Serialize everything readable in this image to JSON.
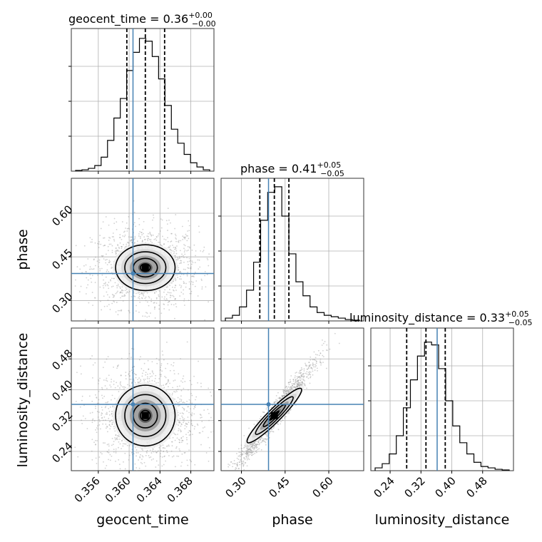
{
  "chart_data": {
    "type": "corner",
    "parameters": [
      "geocent_time",
      "phase",
      "luminosity_distance"
    ],
    "truth": {
      "geocent_time": 0.3605,
      "phase": 0.393,
      "luminosity_distance": 0.362
    },
    "titles": {
      "geocent_time": {
        "base": "geocent_time = 0.36",
        "plus": "+0.00",
        "minus": "−0.00"
      },
      "phase": {
        "base": "phase = 0.41",
        "plus": "+0.05",
        "minus": "−0.05"
      },
      "luminosity_distance": {
        "base": "luminosity_distance = 0.33",
        "plus": "+0.05",
        "minus": "−0.05"
      }
    },
    "axis_labels": {
      "geocent_time": "geocent_time",
      "phase": "phase",
      "luminosity_distance": "luminosity_distance"
    },
    "ticks": {
      "geocent_time": [
        "0.356",
        "0.360",
        "0.364",
        "0.368"
      ],
      "phase": [
        "0.30",
        "0.45",
        "0.60"
      ],
      "luminosity_distance": [
        "0.24",
        "0.32",
        "0.40",
        "0.48"
      ]
    },
    "ranges": {
      "geocent_time": [
        0.3525,
        0.371
      ],
      "phase": [
        0.23,
        0.72
      ],
      "luminosity_distance": [
        0.19,
        0.56
      ]
    },
    "quantile_lines": {
      "geocent_time": [
        0.3597,
        0.3621,
        0.3646
      ],
      "phase": [
        0.363,
        0.413,
        0.463
      ],
      "luminosity_distance": [
        0.283,
        0.333,
        0.383
      ]
    },
    "histograms": {
      "geocent_time": [
        0.005,
        0.01,
        0.02,
        0.04,
        0.1,
        0.22,
        0.38,
        0.52,
        0.72,
        0.85,
        0.95,
        0.93,
        0.82,
        0.66,
        0.47,
        0.3,
        0.2,
        0.12,
        0.06,
        0.03,
        0.01
      ],
      "phase": [
        0.02,
        0.04,
        0.1,
        0.22,
        0.42,
        0.72,
        0.92,
        0.96,
        0.75,
        0.48,
        0.28,
        0.18,
        0.1,
        0.06,
        0.04,
        0.03,
        0.02,
        0.01,
        0.005
      ],
      "luminosity_distance": [
        0.02,
        0.05,
        0.12,
        0.25,
        0.45,
        0.65,
        0.82,
        0.92,
        0.9,
        0.73,
        0.5,
        0.32,
        0.2,
        0.12,
        0.06,
        0.03,
        0.02,
        0.01,
        0.005
      ]
    },
    "grid": true
  }
}
